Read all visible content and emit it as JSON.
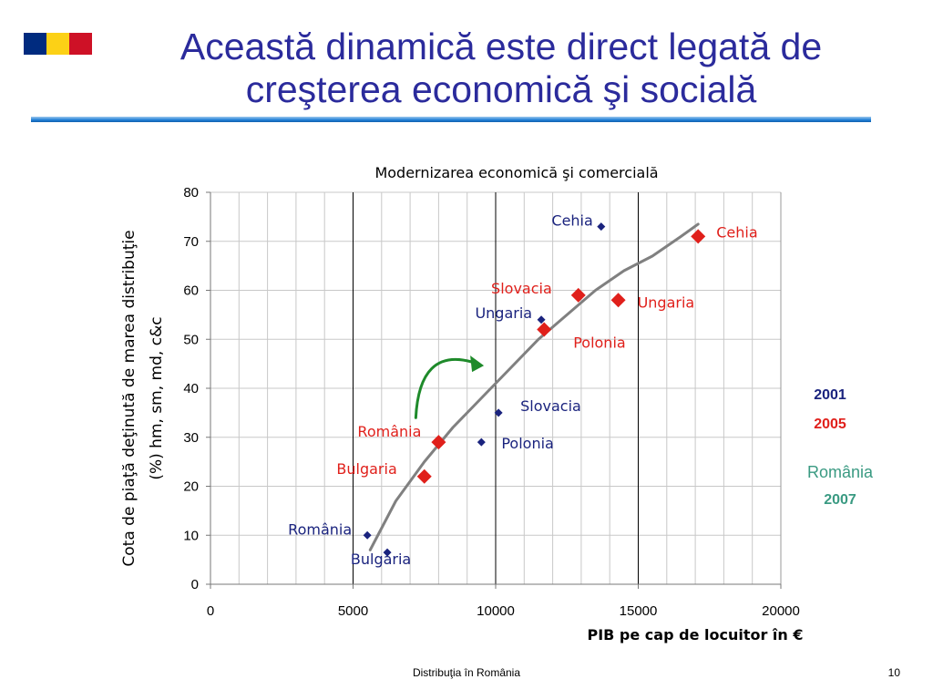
{
  "slide": {
    "title_line1": "Această dinamică este direct legată de",
    "title_line2": "creşterea economică şi socială",
    "footer_text": "Distribuţia în România",
    "page_number": "10",
    "flag_colors": [
      "#002B7F",
      "#FCD116",
      "#CE1126"
    ],
    "title_color": "#2b2b9c",
    "rule_color": "#1f7fd6"
  },
  "chart_data": {
    "type": "scatter",
    "title": "Modernizarea economică şi comercială",
    "xlabel": "PIB pe cap de locuitor în €",
    "ylabel_line1": "Cota de piaţă deţinută de marea distribuţie",
    "ylabel_line2": "(%) hm, sm, md, c&c",
    "xlim": [
      0,
      20000
    ],
    "ylim": [
      0,
      80
    ],
    "x_ticks": [
      0,
      5000,
      10000,
      15000,
      20000
    ],
    "y_ticks": [
      0,
      10,
      20,
      30,
      40,
      50,
      60,
      70,
      80
    ],
    "x_tick_labels": [
      "0",
      "5000",
      "10000",
      "15000",
      "20000"
    ],
    "y_tick_labels": [
      "0",
      "10",
      "20",
      "30",
      "40",
      "50",
      "60",
      "70",
      "80"
    ],
    "grid": true,
    "legend_position": "right",
    "series": [
      {
        "name": "2001",
        "color": "#1a237e",
        "marker": "diamond-small",
        "points": [
          {
            "label": "Cehia",
            "x": 13700,
            "y": 73
          },
          {
            "label": "Ungaria",
            "x": 11600,
            "y": 54
          },
          {
            "label": "Slovacia",
            "x": 10100,
            "y": 35
          },
          {
            "label": "Polonia",
            "x": 9500,
            "y": 29
          },
          {
            "label": "România",
            "x": 5500,
            "y": 10
          },
          {
            "label": "Bulgaria",
            "x": 6200,
            "y": 6.5
          }
        ]
      },
      {
        "name": "2005",
        "color": "#e0201b",
        "marker": "diamond-large",
        "points": [
          {
            "label": "Cehia",
            "x": 17100,
            "y": 71
          },
          {
            "label": "Slovacia",
            "x": 12900,
            "y": 59
          },
          {
            "label": "Ungaria",
            "x": 14300,
            "y": 58
          },
          {
            "label": "Polonia",
            "x": 11700,
            "y": 52
          },
          {
            "label": "România",
            "x": 8000,
            "y": 29
          },
          {
            "label": "Bulgaria",
            "x": 7500,
            "y": 22
          }
        ]
      }
    ],
    "trend_curve": {
      "color": "#808080",
      "points": [
        [
          5600,
          7
        ],
        [
          6500,
          17
        ],
        [
          7500,
          25
        ],
        [
          8500,
          32
        ],
        [
          9500,
          38
        ],
        [
          10500,
          44
        ],
        [
          11500,
          50
        ],
        [
          12500,
          55
        ],
        [
          13500,
          60
        ],
        [
          14500,
          64
        ],
        [
          15500,
          67
        ],
        [
          16500,
          71
        ],
        [
          17100,
          73.5
        ]
      ]
    },
    "legend": [
      {
        "label": "2001",
        "color": "#1a237e"
      },
      {
        "label": "2005",
        "color": "#e0201b"
      },
      {
        "label_line1": "România",
        "label_line2": "2007",
        "color": "#3a9a82"
      }
    ],
    "arrow": {
      "color": "#1e8a2a",
      "from": [
        7200,
        34
      ],
      "to": [
        9300,
        45
      ]
    }
  }
}
